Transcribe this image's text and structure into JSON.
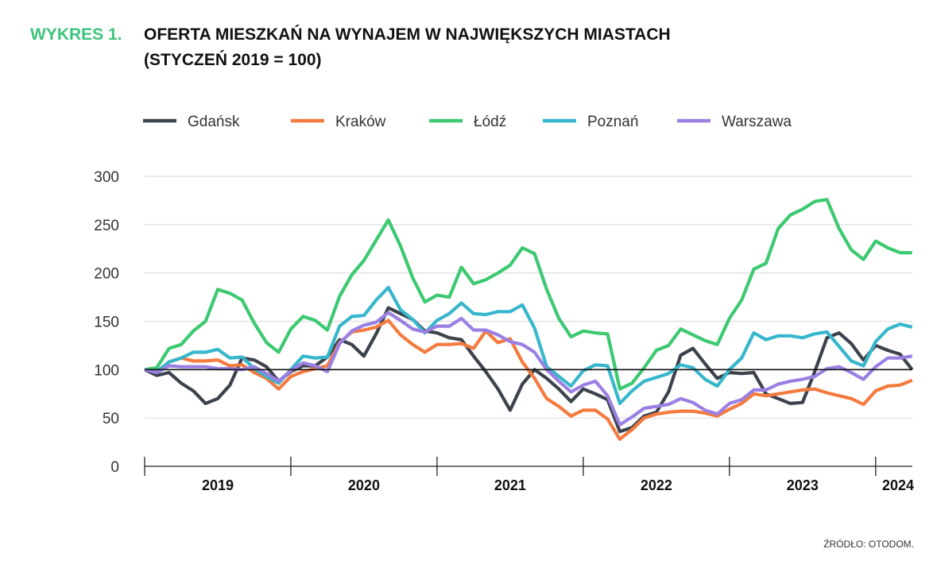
{
  "header": {
    "label": "WYKRES 1.",
    "title_line1": "OFERTA MIESZKAŃ NA WYNAJEM W NAJWIĘKSZYCH MIASTACH",
    "title_line2": "(STYCZEŃ 2019 = 100)",
    "label_color": "#3cc47c"
  },
  "source": "ŹRÓDŁO: OTODOM.",
  "chart_data": {
    "type": "line",
    "title": "OFERTA MIESZKAŃ NA WYNAJEM W NAJWIĘKSZYCH MIASTACH (STYCZEŃ 2019 = 100)",
    "x_start": "2019-01",
    "x_frequency": "monthly",
    "x_tick_labels": [
      "2019",
      "2020",
      "2021",
      "2022",
      "2023",
      "2024"
    ],
    "y_ticks": [
      "0",
      "50",
      "100",
      "150",
      "200",
      "250",
      "300"
    ],
    "ylim": [
      0,
      300
    ],
    "reference_line": 100,
    "grid": true,
    "legend_position": "top",
    "series": [
      {
        "name": "Gdańsk",
        "color": "#3d434d",
        "values": [
          100,
          94,
          97,
          86,
          78,
          65,
          70,
          84,
          112,
          110,
          103,
          88,
          98,
          104,
          104,
          113,
          131,
          126,
          114,
          137,
          164,
          158,
          152,
          140,
          138,
          133,
          131,
          114,
          98,
          80,
          58,
          85,
          100,
          91,
          80,
          67,
          80,
          75,
          69,
          36,
          40,
          52,
          56,
          77,
          115,
          122,
          106,
          91,
          97,
          96,
          97,
          75,
          70,
          65,
          66,
          98,
          133,
          138,
          127,
          110,
          125,
          120,
          116,
          100
        ]
      },
      {
        "name": "Kraków",
        "color": "#f47b3f",
        "values": [
          100,
          98,
          108,
          112,
          109,
          109,
          110,
          104,
          105,
          97,
          91,
          80,
          93,
          98,
          101,
          104,
          128,
          139,
          141,
          144,
          151,
          136,
          126,
          118,
          126,
          126,
          127,
          122,
          140,
          128,
          132,
          108,
          91,
          70,
          62,
          52,
          58,
          58,
          49,
          28,
          38,
          50,
          54,
          56,
          57,
          57,
          55,
          52,
          59,
          65,
          75,
          73,
          75,
          77,
          79,
          80,
          76,
          73,
          70,
          64,
          78,
          83,
          84,
          89
        ]
      },
      {
        "name": "Łódź",
        "color": "#3cc971",
        "values": [
          100,
          102,
          122,
          126,
          140,
          150,
          183,
          179,
          172,
          148,
          128,
          118,
          142,
          155,
          151,
          141,
          176,
          198,
          213,
          234,
          255,
          228,
          195,
          170,
          177,
          175,
          206,
          189,
          193,
          200,
          208,
          226,
          220,
          183,
          153,
          134,
          140,
          138,
          137,
          80,
          86,
          102,
          120,
          125,
          142,
          136,
          130,
          126,
          153,
          172,
          204,
          210,
          246,
          260,
          266,
          274,
          276,
          246,
          224,
          214,
          233,
          226,
          221,
          221
        ]
      },
      {
        "name": "Poznań",
        "color": "#37b6cc",
        "values": [
          100,
          98,
          108,
          112,
          118,
          118,
          121,
          112,
          113,
          101,
          93,
          86,
          100,
          114,
          112,
          113,
          145,
          155,
          156,
          172,
          185,
          162,
          152,
          138,
          151,
          158,
          169,
          158,
          157,
          160,
          160,
          167,
          143,
          103,
          93,
          83,
          99,
          105,
          104,
          65,
          78,
          88,
          92,
          96,
          105,
          102,
          90,
          83,
          100,
          112,
          138,
          131,
          135,
          135,
          133,
          137,
          139,
          124,
          109,
          104,
          129,
          142,
          147,
          144
        ]
      },
      {
        "name": "Warszawa",
        "color": "#9b80e3",
        "values": [
          100,
          97,
          104,
          103,
          103,
          103,
          101,
          101,
          100,
          103,
          96,
          88,
          99,
          107,
          104,
          98,
          127,
          140,
          146,
          149,
          159,
          151,
          142,
          139,
          145,
          145,
          153,
          141,
          141,
          136,
          129,
          126,
          118,
          100,
          88,
          77,
          84,
          88,
          73,
          43,
          51,
          60,
          62,
          64,
          70,
          66,
          58,
          54,
          65,
          69,
          79,
          79,
          85,
          88,
          90,
          93,
          101,
          103,
          97,
          90,
          103,
          112,
          112,
          114
        ]
      }
    ]
  }
}
